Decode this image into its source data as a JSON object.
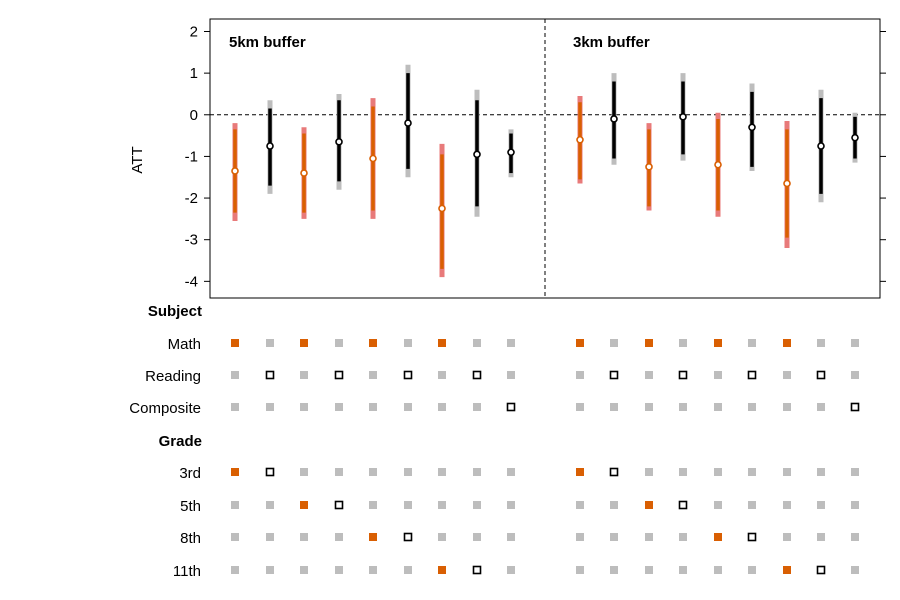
{
  "chart_data": {
    "type": "scatter",
    "ylabel": "ATT",
    "ylim": [
      -4.4,
      2.3
    ],
    "yticks": [
      "2",
      "1",
      "0",
      "-1",
      "-2",
      "-3",
      "-4"
    ],
    "reference_line": 0,
    "colors": {
      "math": "#d95f02",
      "math_outer": "#e87a7a",
      "other": "#000000",
      "other_outer": "#bdbdbd",
      "inactive_dot": "#bdbdbd"
    },
    "panels": [
      {
        "title": "5km buffer",
        "estimates": [
          {
            "est": -1.35,
            "ci90": [
              -2.35,
              -0.35
            ],
            "ci95": [
              -2.55,
              -0.2
            ],
            "math": true
          },
          {
            "est": -0.75,
            "ci90": [
              -1.7,
              0.15
            ],
            "ci95": [
              -1.9,
              0.35
            ],
            "math": false
          },
          {
            "est": -1.4,
            "ci90": [
              -2.35,
              -0.45
            ],
            "ci95": [
              -2.5,
              -0.3
            ],
            "math": true
          },
          {
            "est": -0.65,
            "ci90": [
              -1.6,
              0.35
            ],
            "ci95": [
              -1.8,
              0.5
            ],
            "math": false
          },
          {
            "est": -1.05,
            "ci90": [
              -2.3,
              0.2
            ],
            "ci95": [
              -2.5,
              0.4
            ],
            "math": true
          },
          {
            "est": -0.2,
            "ci90": [
              -1.3,
              1.0
            ],
            "ci95": [
              -1.5,
              1.2
            ],
            "math": false
          },
          {
            "est": -2.25,
            "ci90": [
              -3.7,
              -0.95
            ],
            "ci95": [
              -3.9,
              -0.7
            ],
            "math": true
          },
          {
            "est": -0.95,
            "ci90": [
              -2.2,
              0.35
            ],
            "ci95": [
              -2.45,
              0.6
            ],
            "math": false
          },
          {
            "est": -0.9,
            "ci90": [
              -1.4,
              -0.45
            ],
            "ci95": [
              -1.5,
              -0.35
            ],
            "math": false
          }
        ]
      },
      {
        "title": "3km buffer",
        "estimates": [
          {
            "est": -0.6,
            "ci90": [
              -1.55,
              0.3
            ],
            "ci95": [
              -1.65,
              0.45
            ],
            "math": true
          },
          {
            "est": -0.1,
            "ci90": [
              -1.05,
              0.8
            ],
            "ci95": [
              -1.2,
              1.0
            ],
            "math": false
          },
          {
            "est": -1.25,
            "ci90": [
              -2.2,
              -0.35
            ],
            "ci95": [
              -2.3,
              -0.2
            ],
            "math": true
          },
          {
            "est": -0.05,
            "ci90": [
              -0.95,
              0.8
            ],
            "ci95": [
              -1.1,
              1.0
            ],
            "math": false
          },
          {
            "est": -1.2,
            "ci90": [
              -2.3,
              -0.1
            ],
            "ci95": [
              -2.45,
              0.05
            ],
            "math": true
          },
          {
            "est": -0.3,
            "ci90": [
              -1.25,
              0.55
            ],
            "ci95": [
              -1.35,
              0.75
            ],
            "math": false
          },
          {
            "est": -1.65,
            "ci90": [
              -2.95,
              -0.35
            ],
            "ci95": [
              -3.2,
              -0.15
            ],
            "math": true
          },
          {
            "est": -0.75,
            "ci90": [
              -1.9,
              0.4
            ],
            "ci95": [
              -2.1,
              0.6
            ],
            "math": false
          },
          {
            "est": -0.55,
            "ci90": [
              -1.05,
              -0.05
            ],
            "ci95": [
              -1.15,
              0.05
            ],
            "math": false
          }
        ]
      }
    ],
    "spec_groups": [
      {
        "header": "Subject",
        "rows": [
          {
            "label": "Math",
            "active": [
              0,
              2,
              4,
              6
            ]
          },
          {
            "label": "Reading",
            "active": [
              1,
              3,
              5,
              7
            ]
          },
          {
            "label": "Composite",
            "active": [
              8
            ]
          }
        ]
      },
      {
        "header": "Grade",
        "rows": [
          {
            "label": "3rd",
            "active": [
              0,
              1
            ]
          },
          {
            "label": "5th",
            "active": [
              2,
              3
            ]
          },
          {
            "label": "8th",
            "active": [
              4,
              5
            ]
          },
          {
            "label": "11th",
            "active": [
              6,
              7
            ]
          }
        ]
      }
    ]
  }
}
